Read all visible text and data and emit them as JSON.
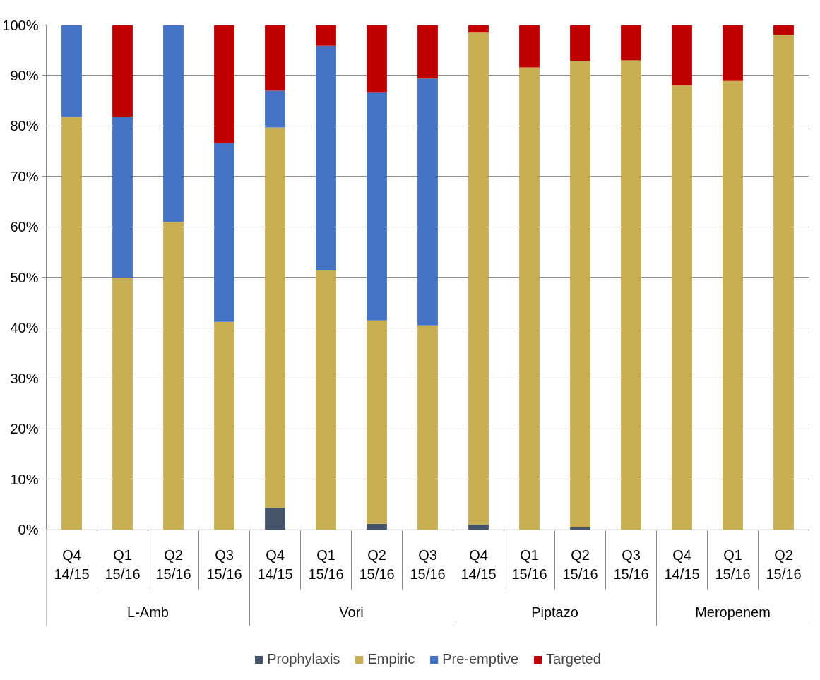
{
  "chart_data": {
    "type": "bar",
    "stacked": true,
    "categories": [
      "Q4\n14/15",
      "Q1\n15/16",
      "Q2\n15/16",
      "Q3\n15/16",
      "Q4\n14/15",
      "Q1\n15/16",
      "Q2\n15/16",
      "Q3\n15/16",
      "Q4\n14/15",
      "Q1\n15/16",
      "Q2\n15/16",
      "Q3\n15/16",
      "Q4\n14/15",
      "Q1\n15/16",
      "Q2\n15/16"
    ],
    "annotations": [
      "L-Amb",
      "Vori",
      "Piptazo",
      "Meropenem"
    ],
    "series": [
      {
        "name": "Prophylaxis",
        "color": "#44546a",
        "values": [
          0,
          0,
          0,
          0,
          4.3,
          0,
          1.2,
          0,
          1,
          0,
          0.5,
          0,
          0,
          0,
          0
        ]
      },
      {
        "name": "Empiric",
        "color": "#c8ae52",
        "values": [
          81.8,
          50,
          61,
          41.2,
          75.4,
          51.4,
          40.3,
          40.5,
          97.5,
          91.6,
          92.4,
          93,
          88.1,
          88.9,
          98.1
        ]
      },
      {
        "name": "Pre-emptive",
        "color": "#4472c4",
        "values": [
          18.2,
          31.8,
          39,
          35.4,
          7.3,
          44.5,
          45.2,
          48.9,
          0,
          0,
          0,
          0,
          0,
          0,
          0
        ]
      },
      {
        "name": "Targeted",
        "color": "#c00000",
        "values": [
          0,
          18.2,
          0,
          23.4,
          13,
          4.1,
          13.3,
          10.6,
          1.5,
          8.4,
          7.1,
          7,
          11.9,
          11.1,
          1.9
        ]
      }
    ],
    "ylim": [
      0,
      100
    ],
    "yticks": [
      {
        "value": 0,
        "label": "0%"
      },
      {
        "value": 10,
        "label": "10%"
      },
      {
        "value": 20,
        "label": "20%"
      },
      {
        "value": 30,
        "label": "30%"
      },
      {
        "value": 40,
        "label": "40%"
      },
      {
        "value": 50,
        "label": "50%"
      },
      {
        "value": 60,
        "label": "60%"
      },
      {
        "value": 70,
        "label": "70%"
      },
      {
        "value": 80,
        "label": "80%"
      },
      {
        "value": 90,
        "label": "90%"
      },
      {
        "value": 100,
        "label": "100%"
      }
    ],
    "grid": "y",
    "legend": "bottom"
  }
}
